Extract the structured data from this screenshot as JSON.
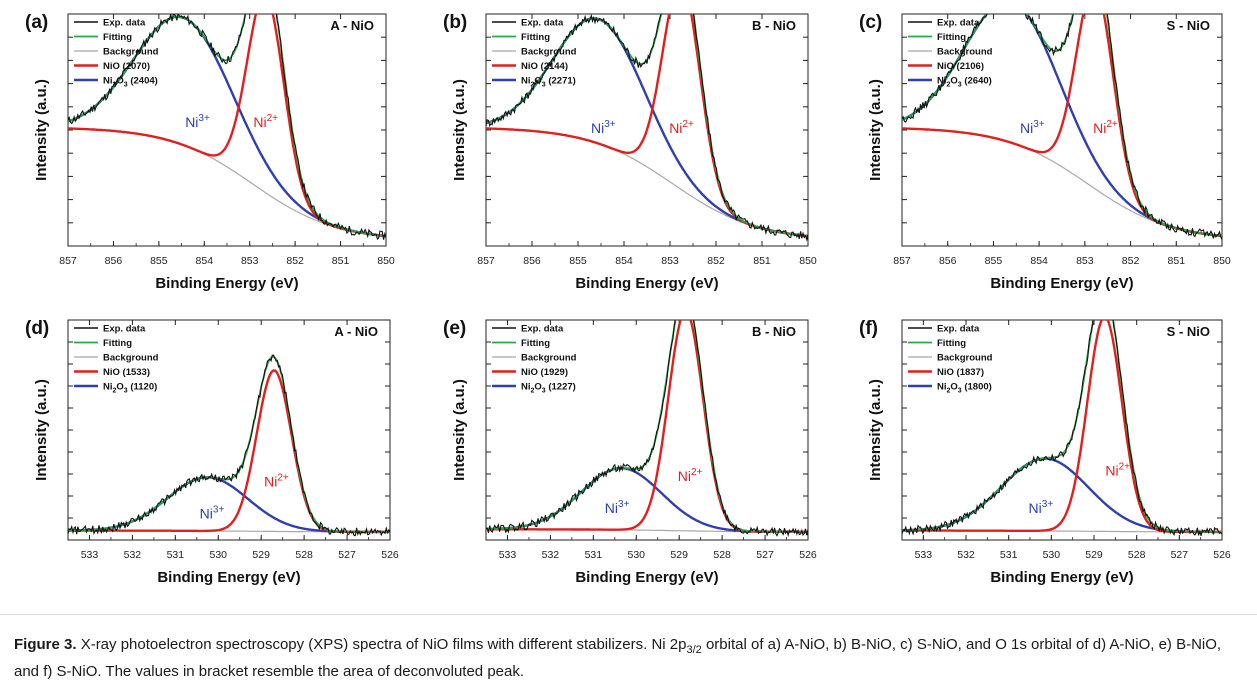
{
  "caption": {
    "label": "Figure 3.",
    "text": "X-ray photoelectron spectroscopy (XPS) spectra of NiO films with different stabilizers. Ni 2p3/2 orbital of a) A-NiO, b) B-NiO, c) S-NiO, and O 1s orbital of d) A-NiO, e) B-NiO, and f) S-NiO. The values in bracket resemble the area of deconvoluted peak."
  },
  "colors": {
    "exp": "#111111",
    "fitting": "#27a844",
    "background": "#a8a8a8",
    "nio": "#e0201f",
    "ni2o3": "#2f3fae",
    "ni3_label": "#2f3fae",
    "ni2_label": "#e0201f"
  },
  "chart_data": [
    {
      "type": "line",
      "panel": "(a)",
      "title": "A - NiO",
      "xlabel": "Binding Energy (eV)",
      "ylabel": "Intensity (a.u.)",
      "xlim": [
        857,
        850
      ],
      "xticks": [
        857,
        856,
        855,
        854,
        853,
        852,
        851,
        850
      ],
      "annotations": [
        {
          "text": "Ni3+",
          "x": 854.2,
          "y": 0.42
        },
        {
          "text": "Ni2+",
          "x": 852.7,
          "y": 0.42
        }
      ],
      "legend": [
        "Exp. data",
        "Fitting",
        "Background",
        "NiO (2070)",
        "Ni2O3 (2404)"
      ],
      "series": [
        {
          "name": "NiO (2070)",
          "peak": {
            "center": 852.65,
            "height": 0.7,
            "fwhm": 0.95
          }
        },
        {
          "name": "Ni2O3 (2404)",
          "peak": {
            "center": 854.45,
            "height": 0.45,
            "fwhm": 2.5
          }
        },
        {
          "name": "Background",
          "range": [
            0.42,
            0.02
          ]
        }
      ]
    },
    {
      "type": "line",
      "panel": "(b)",
      "title": "B - NiO",
      "xlabel": "Binding Energy (eV)",
      "ylabel": "Intensity (a.u.)",
      "xlim": [
        857,
        850
      ],
      "xticks": [
        857,
        856,
        855,
        854,
        853,
        852,
        851,
        850
      ],
      "annotations": [
        {
          "text": "Ni3+",
          "x": 854.5,
          "y": 0.4
        },
        {
          "text": "Ni2+",
          "x": 852.8,
          "y": 0.4
        }
      ],
      "legend": [
        "Exp. data",
        "Fitting",
        "Background",
        "NiO (2144)",
        "Ni2O3 (2271)"
      ],
      "series": [
        {
          "name": "NiO (2144)",
          "peak": {
            "center": 852.75,
            "height": 0.74,
            "fwhm": 0.95
          }
        },
        {
          "name": "Ni2O3 (2271)",
          "peak": {
            "center": 854.55,
            "height": 0.44,
            "fwhm": 2.3
          }
        },
        {
          "name": "Background",
          "range": [
            0.42,
            0.02
          ]
        }
      ]
    },
    {
      "type": "line",
      "panel": "(c)",
      "title": "S - NiO",
      "xlabel": "Binding Energy (eV)",
      "ylabel": "Intensity (a.u.)",
      "xlim": [
        857,
        850
      ],
      "xticks": [
        857,
        856,
        855,
        854,
        853,
        852,
        851,
        850
      ],
      "annotations": [
        {
          "text": "Ni3+",
          "x": 854.2,
          "y": 0.4
        },
        {
          "text": "Ni2+",
          "x": 852.6,
          "y": 0.4
        }
      ],
      "legend": [
        "Exp. data",
        "Fitting",
        "Background",
        "NiO (2106)",
        "Ni2O3 (2640)"
      ],
      "series": [
        {
          "name": "NiO (2106)",
          "peak": {
            "center": 852.78,
            "height": 0.72,
            "fwhm": 0.95
          }
        },
        {
          "name": "Ni2O3 (2640)",
          "peak": {
            "center": 854.6,
            "height": 0.5,
            "fwhm": 2.4
          }
        },
        {
          "name": "Background",
          "range": [
            0.42,
            0.02
          ]
        }
      ]
    },
    {
      "type": "line",
      "panel": "(d)",
      "title": "A - NiO",
      "xlabel": "Binding Energy (eV)",
      "ylabel": "Intensity (a.u.)",
      "xlim": [
        533.5,
        526
      ],
      "xticks": [
        533,
        532,
        531,
        530,
        529,
        528,
        527,
        526
      ],
      "annotations": [
        {
          "text": "Ni3+",
          "x": 530.2,
          "y": 0.08
        },
        {
          "text": "Ni2+",
          "x": 528.7,
          "y": 0.2
        }
      ],
      "legend": [
        "Exp. data",
        "Fitting",
        "Background",
        "NiO (1533)",
        "Ni2O3 (1120)"
      ],
      "series": [
        {
          "name": "NiO (1533)",
          "peak": {
            "center": 528.7,
            "height": 0.6,
            "fwhm": 0.95
          }
        },
        {
          "name": "Ni2O3 (1120)",
          "peak": {
            "center": 530.25,
            "height": 0.2,
            "fwhm": 2.2
          }
        },
        {
          "name": "Background",
          "range": [
            0.035,
            0.03
          ]
        }
      ]
    },
    {
      "type": "line",
      "panel": "(e)",
      "title": "B - NiO",
      "xlabel": "Binding Energy (eV)",
      "ylabel": "Intensity (a.u.)",
      "xlim": [
        533.5,
        526
      ],
      "xticks": [
        533,
        532,
        531,
        530,
        529,
        528,
        527,
        526
      ],
      "annotations": [
        {
          "text": "Ni3+",
          "x": 530.5,
          "y": 0.1
        },
        {
          "text": "Ni2+",
          "x": 528.8,
          "y": 0.22
        }
      ],
      "legend": [
        "Exp. data",
        "Fitting",
        "Background",
        "NiO (1929)",
        "Ni2O3 (1227)"
      ],
      "series": [
        {
          "name": "NiO (1929)",
          "peak": {
            "center": 528.85,
            "height": 0.82,
            "fwhm": 0.95
          }
        },
        {
          "name": "Ni2O3 (1227)",
          "peak": {
            "center": 530.35,
            "height": 0.23,
            "fwhm": 2.2
          }
        },
        {
          "name": "Background",
          "range": [
            0.04,
            0.03
          ]
        }
      ]
    },
    {
      "type": "line",
      "panel": "(f)",
      "title": "S - NiO",
      "xlabel": "Binding Energy (eV)",
      "ylabel": "Intensity (a.u.)",
      "xlim": [
        533.5,
        526
      ],
      "xticks": [
        533,
        532,
        531,
        530,
        529,
        528,
        527,
        526
      ],
      "annotations": [
        {
          "text": "Ni3+",
          "x": 530.3,
          "y": 0.1
        },
        {
          "text": "Ni2+",
          "x": 528.5,
          "y": 0.24
        }
      ],
      "legend": [
        "Exp. data",
        "Fitting",
        "Background",
        "NiO (1837)",
        "Ni2O3 (1800)"
      ],
      "series": [
        {
          "name": "NiO (1837)",
          "peak": {
            "center": 528.75,
            "height": 0.8,
            "fwhm": 0.95
          }
        },
        {
          "name": "Ni2O3 (1800)",
          "peak": {
            "center": 530.15,
            "height": 0.27,
            "fwhm": 2.4
          }
        },
        {
          "name": "Background",
          "range": [
            0.035,
            0.03
          ]
        }
      ]
    }
  ]
}
